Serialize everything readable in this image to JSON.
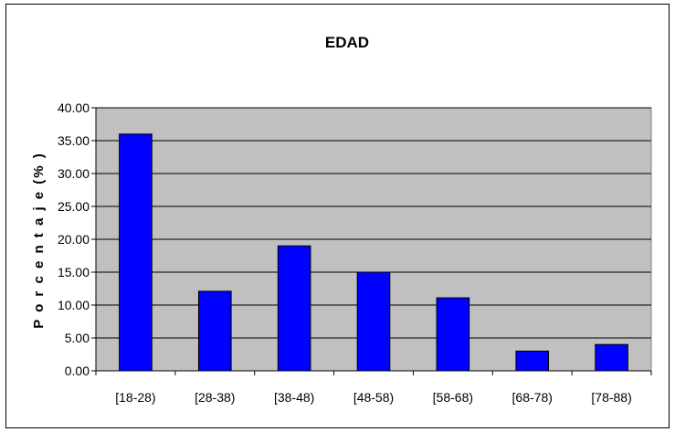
{
  "chart_data": {
    "type": "bar",
    "title": "EDAD",
    "xlabel": "",
    "ylabel": "P o r c e n t a j e  (% )",
    "categories": [
      "[18-28)",
      "[28-38)",
      "[38-48)",
      "[48-58)",
      "[58-68)",
      "[68-78)",
      "[78-88)"
    ],
    "values": [
      36.0,
      12.1,
      19.0,
      15.0,
      11.1,
      3.0,
      4.0
    ],
    "ylim": [
      0,
      40
    ],
    "yticks": [
      "0.00",
      "5.00",
      "10.00",
      "15.00",
      "20.00",
      "25.00",
      "30.00",
      "35.00",
      "40.00"
    ],
    "grid": true,
    "legend": "none",
    "colors": {
      "bar_fill": "#0000ff",
      "bar_stroke": "#000000",
      "plot_background": "#c0c0c0",
      "gridline": "#000000"
    }
  }
}
